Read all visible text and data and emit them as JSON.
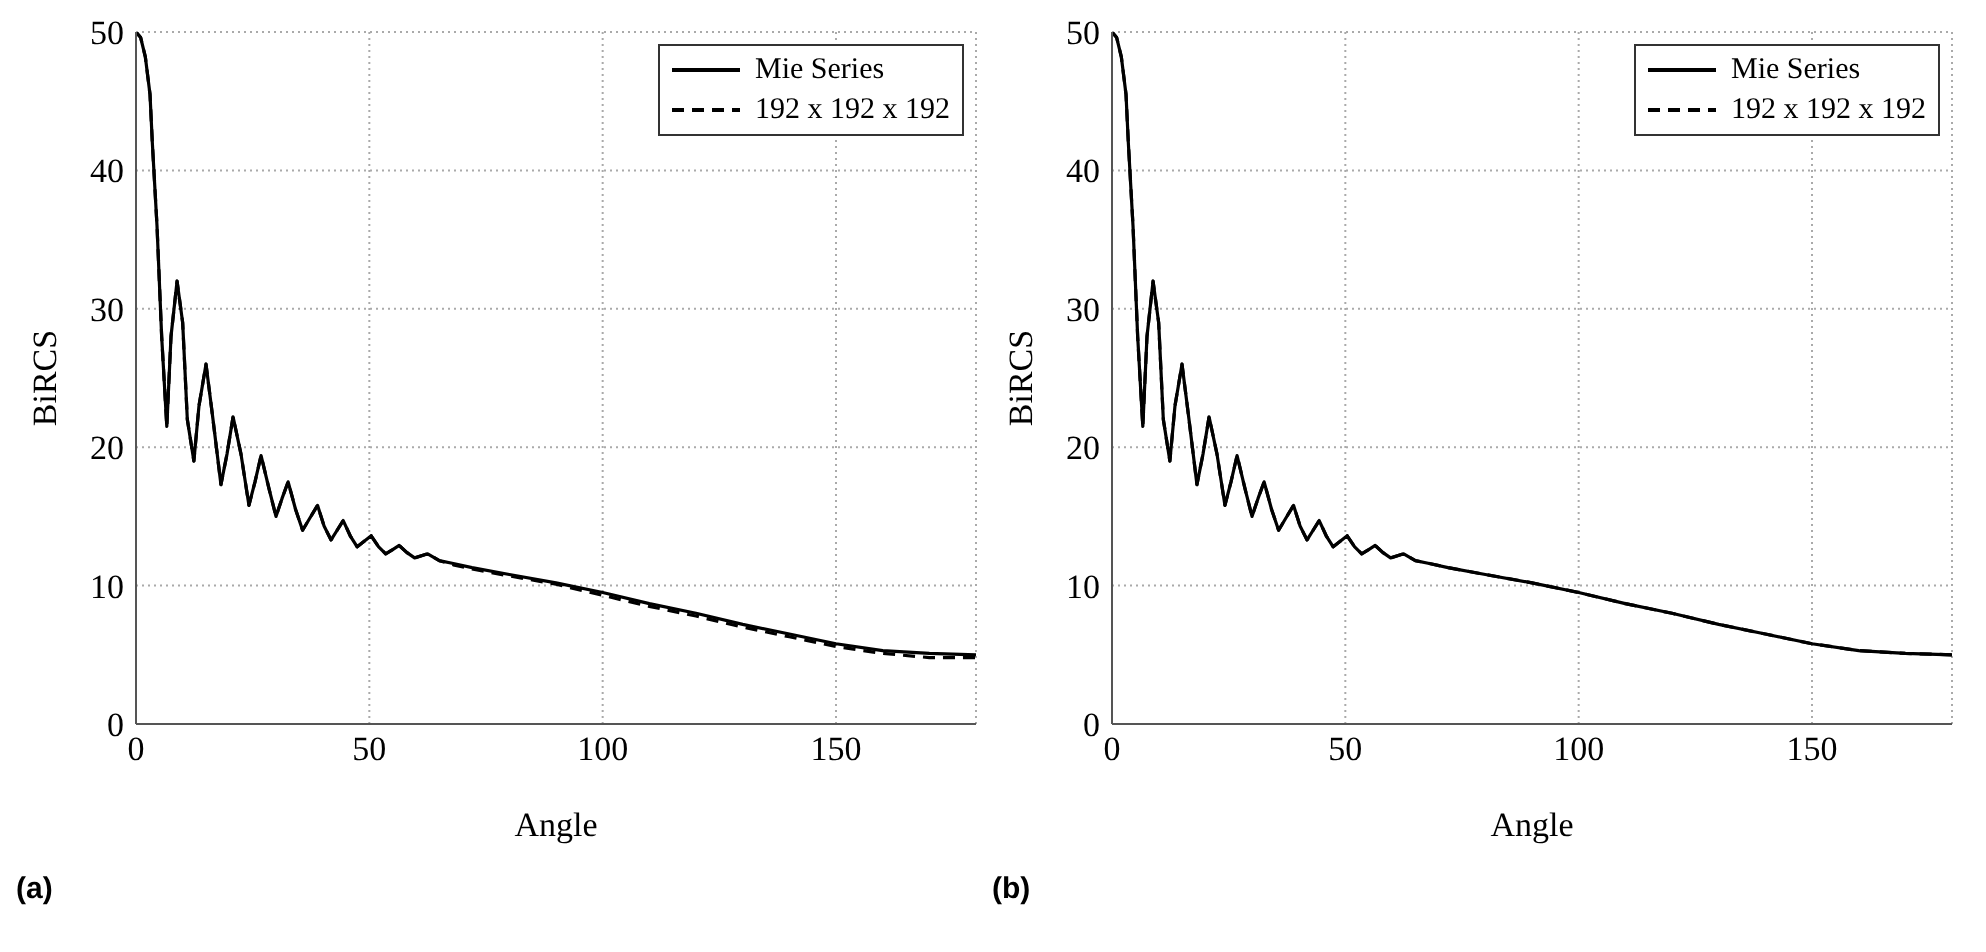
{
  "chart_data": [
    {
      "type": "line",
      "xlabel": "Angle",
      "ylabel": "BiRCS",
      "annotations": [
        "(a)"
      ],
      "x": [
        0,
        1,
        2,
        3,
        3.5,
        4.5,
        5.5,
        6.6,
        7.5,
        8.8,
        10,
        11,
        12.4,
        13.5,
        15,
        16.5,
        18.2,
        19.5,
        20.8,
        22.5,
        24.2,
        25.5,
        26.8,
        28.5,
        30,
        31.3,
        32.6,
        34.2,
        35.7,
        37.3,
        38.9,
        40.3,
        41.8,
        43.1,
        44.4,
        45.9,
        47.4,
        48.9,
        50.4,
        52,
        53.5,
        55,
        56.4,
        58,
        59.7,
        62.5,
        65,
        68,
        72,
        80,
        90,
        100,
        110,
        120,
        130,
        140,
        150,
        160,
        170,
        180
      ],
      "series": [
        {
          "name": "Mie Series",
          "color": "#000000",
          "line_style": "solid",
          "values": [
            50,
            49.6,
            48.2,
            45.5,
            42,
            36,
            28,
            21.5,
            28,
            32,
            29,
            22,
            19,
            23,
            26,
            22,
            17.3,
            19.5,
            22.2,
            19.5,
            15.8,
            17.5,
            19.4,
            17,
            15,
            16.3,
            17.5,
            15.5,
            14,
            14.9,
            15.8,
            14.3,
            13.3,
            14,
            14.7,
            13.6,
            12.8,
            13.2,
            13.6,
            12.8,
            12.3,
            12.6,
            12.9,
            12.4,
            12,
            12.3,
            11.8,
            11.6,
            11.3,
            10.8,
            10.2,
            9.5,
            8.7,
            8,
            7.2,
            6.5,
            5.8,
            5.3,
            5.1,
            5.0
          ]
        },
        {
          "name": "192 x 192 x 192",
          "color": "#000000",
          "line_style": "dashed",
          "values": [
            50,
            49.6,
            48.2,
            45.5,
            42,
            36,
            28,
            21.5,
            28,
            32,
            29,
            22,
            19,
            23,
            26,
            22,
            17.3,
            19.5,
            22.2,
            19.5,
            15.8,
            17.5,
            19.4,
            17,
            15,
            16.3,
            17.5,
            15.5,
            14,
            14.9,
            15.8,
            14.3,
            13.3,
            14,
            14.7,
            13.6,
            12.8,
            13.2,
            13.6,
            12.8,
            12.3,
            12.6,
            12.9,
            12.4,
            12,
            12.3,
            11.8,
            11.5,
            11.2,
            10.7,
            10.1,
            9.3,
            8.5,
            7.8,
            7.0,
            6.3,
            5.6,
            5.1,
            4.8,
            4.8
          ]
        }
      ],
      "xlim": [
        0,
        180
      ],
      "xticks": [
        0,
        50,
        100,
        150
      ],
      "ylim": [
        0,
        50
      ],
      "yticks": [
        0,
        10,
        20,
        30,
        40,
        50
      ],
      "grid": true,
      "legend": "top right",
      "marker": "none"
    },
    {
      "type": "line",
      "xlabel": "Angle",
      "ylabel": "BiRCS",
      "annotations": [
        "(b)"
      ],
      "x": [
        0,
        1,
        2,
        3,
        3.5,
        4.5,
        5.5,
        6.6,
        7.5,
        8.8,
        10,
        11,
        12.4,
        13.5,
        15,
        16.5,
        18.2,
        19.5,
        20.8,
        22.5,
        24.2,
        25.5,
        26.8,
        28.5,
        30,
        31.3,
        32.6,
        34.2,
        35.7,
        37.3,
        38.9,
        40.3,
        41.8,
        43.1,
        44.4,
        45.9,
        47.4,
        48.9,
        50.4,
        52,
        53.5,
        55,
        56.4,
        58,
        59.7,
        62.5,
        65,
        68,
        72,
        80,
        90,
        100,
        110,
        120,
        130,
        140,
        150,
        160,
        170,
        180
      ],
      "series": [
        {
          "name": "Mie Series",
          "color": "#000000",
          "line_style": "solid",
          "values": [
            50,
            49.6,
            48.2,
            45.5,
            42,
            36,
            28,
            21.5,
            28,
            32,
            29,
            22,
            19,
            23,
            26,
            22,
            17.3,
            19.5,
            22.2,
            19.5,
            15.8,
            17.5,
            19.4,
            17,
            15,
            16.3,
            17.5,
            15.5,
            14,
            14.9,
            15.8,
            14.3,
            13.3,
            14,
            14.7,
            13.6,
            12.8,
            13.2,
            13.6,
            12.8,
            12.3,
            12.6,
            12.9,
            12.4,
            12,
            12.3,
            11.8,
            11.6,
            11.3,
            10.8,
            10.2,
            9.5,
            8.7,
            8,
            7.2,
            6.5,
            5.8,
            5.3,
            5.1,
            5.0
          ]
        },
        {
          "name": "192 x 192 x 192",
          "color": "#000000",
          "line_style": "dashed",
          "values": [
            50,
            49.6,
            48.2,
            45.5,
            42,
            36,
            28,
            21.5,
            28,
            32,
            29,
            22,
            19,
            23,
            26,
            22,
            17.3,
            19.5,
            22.2,
            19.5,
            15.8,
            17.5,
            19.4,
            17,
            15,
            16.3,
            17.5,
            15.5,
            14,
            14.9,
            15.8,
            14.3,
            13.3,
            14,
            14.7,
            13.6,
            12.8,
            13.2,
            13.6,
            12.8,
            12.3,
            12.6,
            12.9,
            12.4,
            12,
            12.3,
            11.8,
            11.6,
            11.3,
            10.8,
            10.2,
            9.5,
            8.7,
            8,
            7.2,
            6.5,
            5.8,
            5.3,
            5.1,
            5.0
          ]
        }
      ],
      "xlim": [
        0,
        180
      ],
      "xticks": [
        0,
        50,
        100,
        150
      ],
      "ylim": [
        0,
        50
      ],
      "yticks": [
        0,
        10,
        20,
        30,
        40,
        50
      ],
      "grid": true,
      "legend": "top right",
      "marker": "none"
    }
  ]
}
